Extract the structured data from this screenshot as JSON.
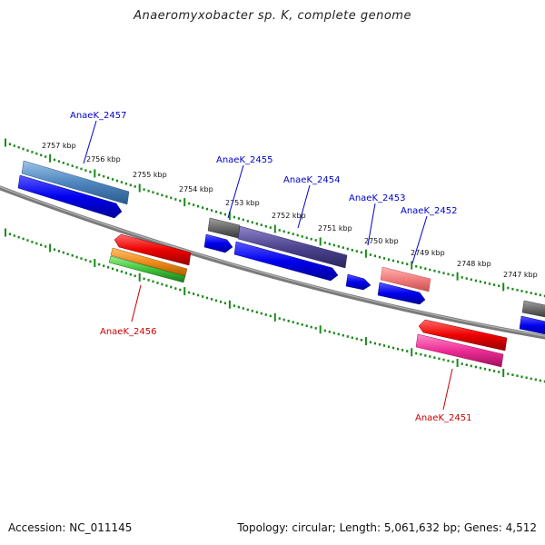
{
  "title": "Anaeromyxobacter sp. K, complete genome",
  "footer": {
    "accession": "Accession: NC_011145",
    "summary": "Topology: circular; Length: 5,061,632 bp; Genes: 4,512"
  },
  "ticks": [
    "2757 kbp",
    "2756 kbp",
    "2755 kbp",
    "2754 kbp",
    "2753 kbp",
    "2752 kbp",
    "2751 kbp",
    "2750 kbp",
    "2749 kbp",
    "2748 kbp",
    "2747 kbp"
  ],
  "gene_labels": {
    "g2457": "AnaeK_2457",
    "g2455": "AnaeK_2455",
    "g2454": "AnaeK_2454",
    "g2453": "AnaeK_2453",
    "g2452": "AnaeK_2452",
    "g2456": "AnaeK_2456",
    "g2451": "AnaeK_2451"
  },
  "colors": {
    "forward_label": "#0000cc",
    "reverse_label": "#cc0000",
    "tick_green": "#1a8a1a",
    "backbone": "#7a7a7a"
  }
}
